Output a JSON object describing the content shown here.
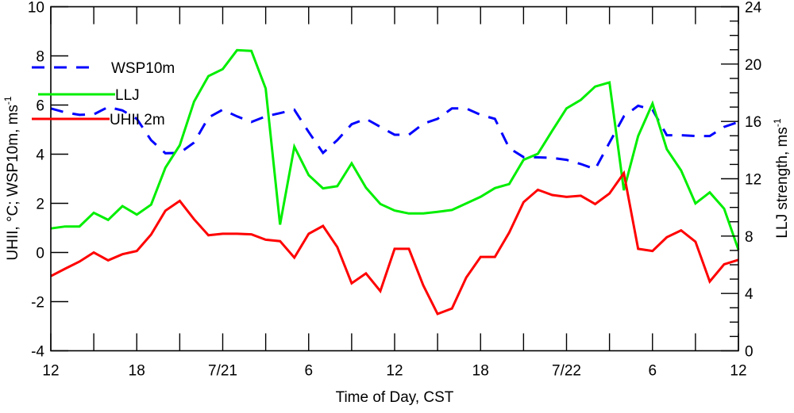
{
  "chart_data": {
    "type": "line",
    "xlabel": "Time of Day, CST",
    "ylabel_left": "UHII, °C; WSP10m, ms",
    "ylabel_left_sup": "-1",
    "ylabel_right": "LLJ strength, ms",
    "ylabel_right_sup": "-1",
    "x_range_hours": [
      0,
      48
    ],
    "x_ticks": [
      {
        "hour": 0,
        "label": "12"
      },
      {
        "hour": 6,
        "label": "18"
      },
      {
        "hour": 12,
        "label": "7/21"
      },
      {
        "hour": 18,
        "label": "6"
      },
      {
        "hour": 24,
        "label": "12"
      },
      {
        "hour": 30,
        "label": "18"
      },
      {
        "hour": 36,
        "label": "7/22"
      },
      {
        "hour": 42,
        "label": "6"
      },
      {
        "hour": 48,
        "label": "12"
      }
    ],
    "ylim_left": [
      -4,
      10
    ],
    "yticks_left": [
      "-4",
      "-2",
      "0",
      "2",
      "4",
      "6",
      "8",
      "10"
    ],
    "ylim_right": [
      0,
      24
    ],
    "yticks_right": [
      "0",
      "4",
      "8",
      "12",
      "16",
      "20",
      "24"
    ],
    "legend_placement": "upper-left",
    "series": [
      {
        "name": "WSP10m",
        "axis": "left",
        "color": "#0000ff",
        "style": "dashed",
        "values": [
          5.86,
          5.7,
          5.6,
          5.62,
          5.92,
          5.78,
          5.44,
          4.57,
          4.04,
          4.05,
          4.47,
          5.49,
          5.81,
          5.54,
          5.31,
          5.54,
          5.67,
          5.81,
          4.9,
          4.05,
          4.57,
          5.22,
          5.44,
          5.11,
          4.79,
          4.79,
          5.24,
          5.44,
          5.86,
          5.86,
          5.6,
          5.44,
          4.25,
          3.88,
          3.87,
          3.85,
          3.77,
          3.6,
          3.39,
          4.47,
          5.54,
          5.97,
          5.81,
          4.77,
          4.77,
          4.74,
          4.74,
          5.11,
          5.31
        ]
      },
      {
        "name": "LLJ",
        "axis": "right",
        "color": "#00ee00",
        "style": "solid",
        "values": [
          8.53,
          8.67,
          8.67,
          9.63,
          9.13,
          10.09,
          9.5,
          10.19,
          12.77,
          14.34,
          17.38,
          19.16,
          19.65,
          20.97,
          20.92,
          18.3,
          8.8,
          14.24,
          12.25,
          11.33,
          11.48,
          13.08,
          11.38,
          10.24,
          9.78,
          9.58,
          9.58,
          9.69,
          9.82,
          10.28,
          10.74,
          11.35,
          11.63,
          13.32,
          13.74,
          15.35,
          16.91,
          17.5,
          18.43,
          18.72,
          11.2,
          14.98,
          17.25,
          14.06,
          12.58,
          10.28,
          11.05,
          9.91,
          7.05
        ]
      },
      {
        "name": "UHII 2m",
        "axis": "left",
        "color": "#ff0000",
        "style": "solid",
        "values": [
          -0.96,
          -0.66,
          -0.37,
          0.0,
          -0.32,
          -0.07,
          0.06,
          0.73,
          1.7,
          2.1,
          1.35,
          0.7,
          0.76,
          0.76,
          0.74,
          0.52,
          0.46,
          -0.21,
          0.76,
          1.08,
          0.22,
          -1.25,
          -0.85,
          -1.57,
          0.15,
          0.15,
          -1.34,
          -2.5,
          -2.28,
          -1.02,
          -0.18,
          -0.18,
          0.81,
          2.05,
          2.55,
          2.34,
          2.26,
          2.31,
          1.97,
          2.4,
          3.23,
          0.15,
          0.06,
          0.62,
          0.9,
          0.44,
          -1.18,
          -0.48,
          -0.3
        ]
      }
    ]
  }
}
